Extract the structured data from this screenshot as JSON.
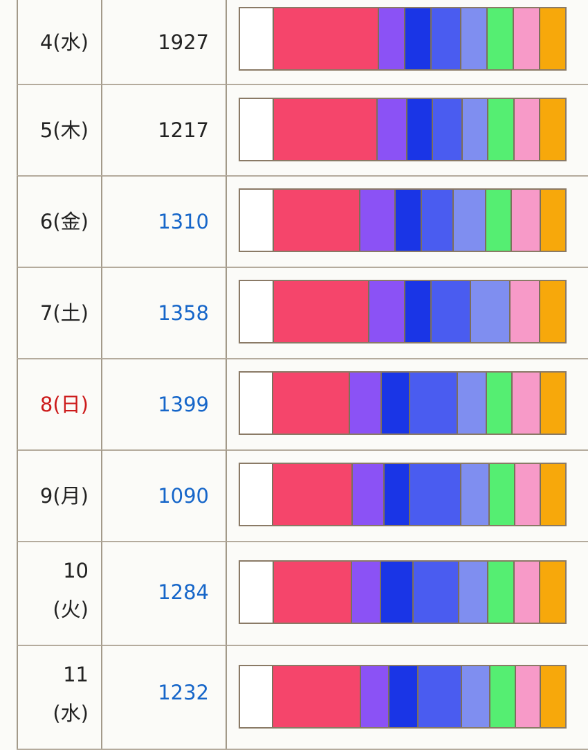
{
  "segment_colors": [
    "#ffffff",
    "#f5456b",
    "#8b52f5",
    "#1a35e6",
    "#4a5cf0",
    "#7f8ef0",
    "#55ee72",
    "#f79ac8",
    "#f7a80b"
  ],
  "rows": [
    {
      "date": "4(水)",
      "count": "1927",
      "link": false,
      "holiday": false,
      "shares": [
        10,
        32,
        8,
        8,
        9,
        8,
        8,
        8,
        8
      ]
    },
    {
      "date": "5(木)",
      "count": "1217",
      "link": false,
      "holiday": false,
      "shares": [
        10,
        32,
        9,
        8,
        9,
        8,
        8,
        8,
        8
      ]
    },
    {
      "date": "6(金)",
      "count": "1310",
      "link": true,
      "holiday": false,
      "shares": [
        10,
        27,
        11,
        8,
        10,
        10,
        8,
        9,
        8
      ]
    },
    {
      "date": "7(土)",
      "count": "1358",
      "link": true,
      "holiday": false,
      "shares": [
        10,
        29,
        11,
        8,
        12,
        12,
        0,
        9,
        8
      ]
    },
    {
      "date": "8(日)",
      "count": "1399",
      "link": true,
      "holiday": true,
      "shares": [
        10,
        24,
        10,
        9,
        15,
        9,
        8,
        9,
        8
      ]
    },
    {
      "date": "9(月)",
      "count": "1090",
      "link": true,
      "holiday": false,
      "shares": [
        10,
        25,
        10,
        8,
        16,
        9,
        8,
        8,
        8
      ]
    },
    {
      "date": "10\n(火)",
      "count": "1284",
      "link": true,
      "holiday": false,
      "shares": [
        10,
        24,
        9,
        10,
        14,
        9,
        8,
        8,
        8
      ]
    },
    {
      "date": "11\n(水)",
      "count": "1232",
      "link": true,
      "holiday": false,
      "shares": [
        10,
        28,
        9,
        9,
        14,
        9,
        8,
        8,
        8
      ]
    }
  ]
}
